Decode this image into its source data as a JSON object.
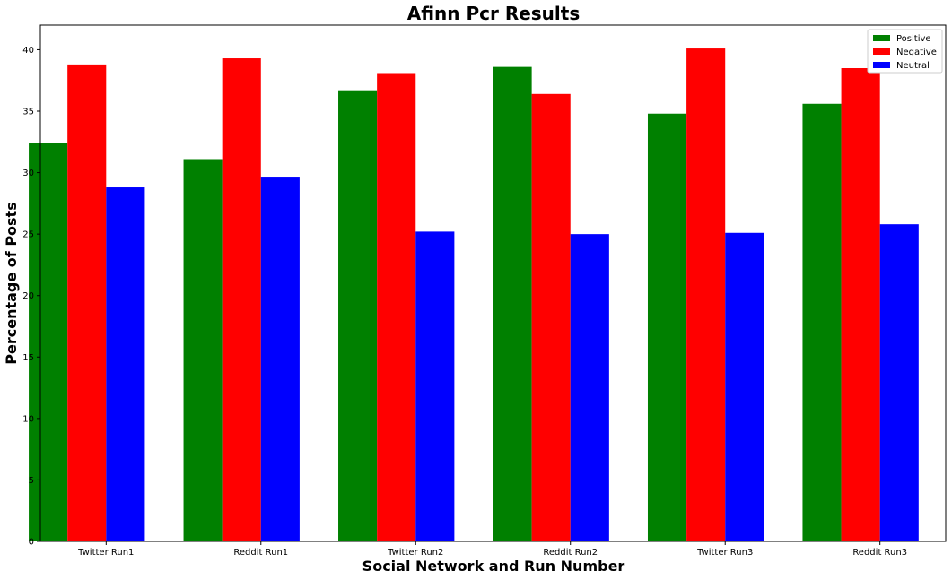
{
  "chart_data": {
    "type": "bar",
    "title": "Afinn Pcr Results",
    "xlabel": "Social Network and Run Number",
    "ylabel": "Percentage of Posts",
    "categories": [
      "Twitter Run1",
      "Reddit Run1",
      "Twitter Run2",
      "Reddit Run2",
      "Twitter Run3",
      "Reddit Run3"
    ],
    "series": [
      {
        "name": "Positive",
        "color": "#008000",
        "values": [
          32.4,
          31.1,
          36.7,
          38.6,
          34.8,
          35.6
        ]
      },
      {
        "name": "Negative",
        "color": "#ff0000",
        "values": [
          38.8,
          39.3,
          38.1,
          36.4,
          40.1,
          38.5
        ]
      },
      {
        "name": "Neutral",
        "color": "#0000ff",
        "values": [
          28.8,
          29.6,
          25.2,
          25.0,
          25.1,
          25.8
        ]
      }
    ],
    "ylim": [
      0,
      42
    ],
    "yticks": [
      0,
      5,
      10,
      15,
      20,
      25,
      30,
      35,
      40
    ],
    "ytick_labels": [
      "0",
      "5",
      "10",
      "15",
      "20",
      "25",
      "30",
      "35",
      "40"
    ],
    "legend_position": "top-right",
    "grid": false
  }
}
